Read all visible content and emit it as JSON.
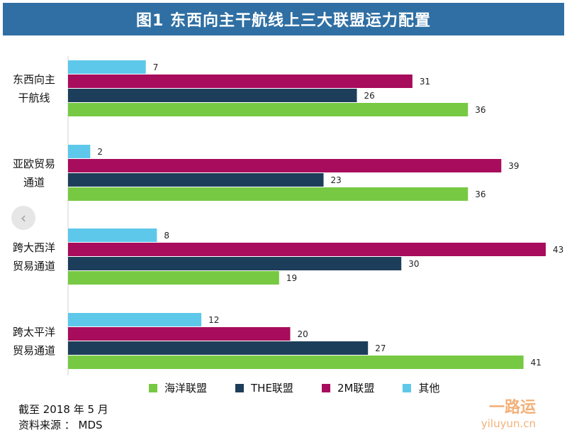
{
  "title": "图1  东西向主干航线上三大联盟运力配置",
  "chart_data": {
    "type": "bar",
    "orientation": "horizontal",
    "categories": [
      [
        "东西向主",
        "干航线"
      ],
      [
        "亚欧贸易",
        "通道"
      ],
      [
        "跨大西洋",
        "贸易通道"
      ],
      [
        "跨太平洋",
        "贸易通道"
      ]
    ],
    "series": [
      {
        "name": "其他",
        "color": "#5ec8ea",
        "values": [
          7,
          2,
          8,
          12
        ]
      },
      {
        "name": "2M联盟",
        "color": "#a80c5c",
        "values": [
          31,
          39,
          43,
          20
        ]
      },
      {
        "name": "THE联盟",
        "color": "#1d3e5a",
        "values": [
          26,
          23,
          30,
          27
        ]
      },
      {
        "name": "海洋联盟",
        "color": "#77c943",
        "values": [
          36,
          36,
          19,
          41
        ]
      }
    ],
    "xlim": [
      0,
      44
    ],
    "grid": false,
    "legend_position": "bottom"
  },
  "legend": [
    {
      "label": "海洋联盟",
      "color": "#77c943"
    },
    {
      "label": "THE联盟",
      "color": "#1d3e5a"
    },
    {
      "label": "2M联盟",
      "color": "#a80c5c"
    },
    {
      "label": "其他",
      "color": "#5ec8ea"
    }
  ],
  "footnote": {
    "line1": "截至 2018 年 5 月",
    "line2": "资料来源 ： MDS"
  },
  "watermark": {
    "cn": "一路运",
    "en": "yiluyun.cn"
  },
  "nav": {
    "prev_glyph": "‹"
  }
}
